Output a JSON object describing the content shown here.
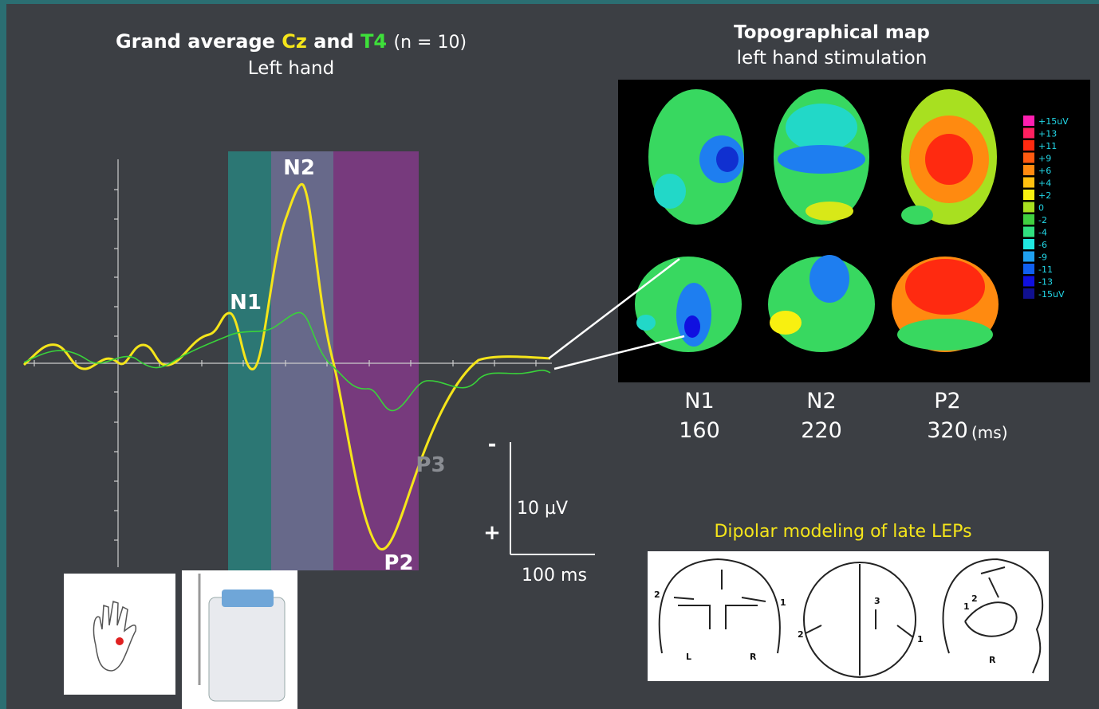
{
  "title": {
    "prefix": "Grand average",
    "cz": "Cz",
    "and": "and",
    "t4": "T4",
    "n": "(n = 10)",
    "subtitle": "Left hand"
  },
  "peak_labels": {
    "n1": "N1",
    "n2": "N2",
    "p2": "P2",
    "p3": "P3"
  },
  "scale": {
    "minus": "-",
    "plus": "+",
    "amplitude": "10 µV",
    "time": "100 ms"
  },
  "topo": {
    "title": "Topographical map",
    "subtitle": "left hand stimulation",
    "colorbar": [
      {
        "label": "+15uV",
        "color": "#ff1fb0"
      },
      {
        "label": "+13",
        "color": "#ff2060"
      },
      {
        "label": "+11",
        "color": "#ff2a10"
      },
      {
        "label": "+9",
        "color": "#ff5a10"
      },
      {
        "label": "+6",
        "color": "#ff8a10"
      },
      {
        "label": "+4",
        "color": "#ffc010"
      },
      {
        "label": "+2",
        "color": "#f8f010"
      },
      {
        "label": "0",
        "color": "#a8e020"
      },
      {
        "label": "-2",
        "color": "#40d040"
      },
      {
        "label": "-4",
        "color": "#30e080"
      },
      {
        "label": "-6",
        "color": "#20e8e0"
      },
      {
        "label": "-9",
        "color": "#20a0f0"
      },
      {
        "label": "-11",
        "color": "#1060f0"
      },
      {
        "label": "-13",
        "color": "#1010e0"
      },
      {
        "label": "-15uV",
        "color": "#101090"
      }
    ],
    "components": [
      {
        "name": "N1",
        "latency": 160
      },
      {
        "name": "N2",
        "latency": 220
      },
      {
        "name": "P2",
        "latency": 320
      }
    ],
    "unit": "(ms)"
  },
  "dipole": {
    "title": "Dipolar modeling of late LEPs",
    "labels": [
      "2",
      "1",
      "L",
      "R",
      "3",
      "2",
      "1",
      "1",
      "2",
      "R"
    ]
  }
}
